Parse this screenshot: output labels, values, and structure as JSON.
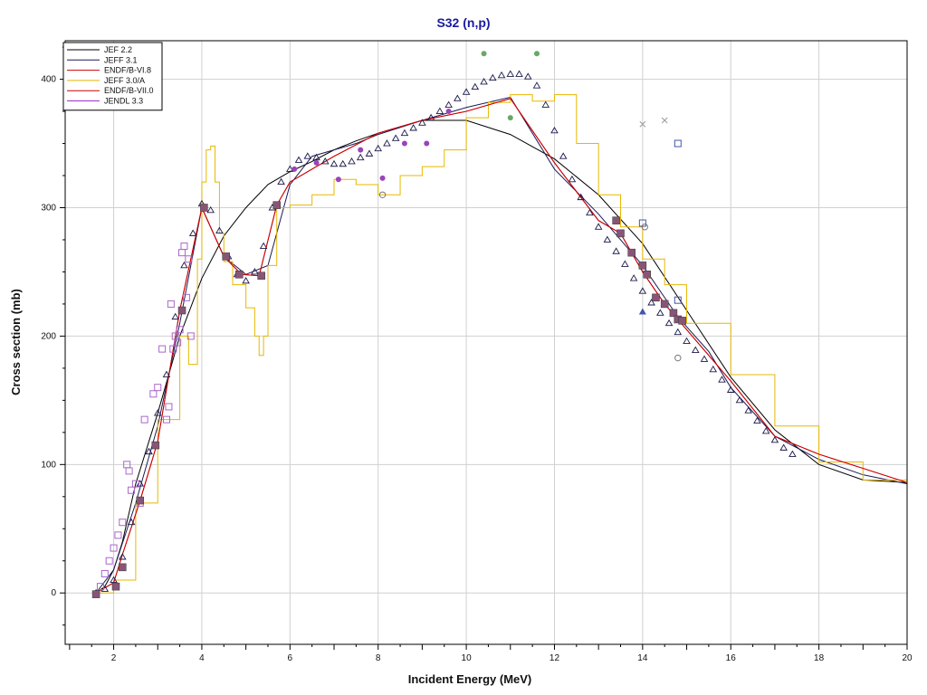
{
  "chart_data": {
    "type": "line",
    "title": "S32 (n,p)",
    "xlabel": "Incident Energy (MeV)",
    "ylabel": "Cross section (mb)",
    "xlim": [
      0.9,
      20
    ],
    "ylim": [
      -40,
      430
    ],
    "grid": true,
    "legend_position": "top-left",
    "x_ticks": [
      2,
      4,
      6,
      8,
      10,
      12,
      14,
      16,
      18,
      20
    ],
    "x_tick_labels": [
      "2",
      "4",
      "6",
      "8",
      "10",
      "12",
      "14",
      "16",
      "18",
      "20"
    ],
    "y_ticks": [
      0,
      100,
      200,
      300,
      400
    ],
    "y_tick_labels": [
      "0",
      "100",
      "200",
      "300",
      "400"
    ],
    "series": [
      {
        "name": "JEF 2.2",
        "color": "#000000",
        "style": "line",
        "x": [
          1.6,
          1.8,
          2.0,
          2.2,
          2.5,
          3.0,
          3.5,
          4.0,
          4.5,
          5.0,
          5.5,
          6.0,
          6.5,
          7.0,
          7.5,
          8.0,
          9.0,
          10.0,
          11.0,
          12.0,
          13.0,
          14.0,
          15.0,
          16.0,
          17.0,
          18.0,
          19.0,
          20.0
        ],
        "y": [
          0,
          5,
          18,
          40,
          85,
          140,
          200,
          245,
          278,
          300,
          318,
          328,
          336,
          345,
          352,
          358,
          368,
          368,
          357,
          338,
          310,
          272,
          220,
          168,
          127,
          100,
          88,
          86
        ]
      },
      {
        "name": "JEFF 3.1",
        "color": "#1a1a5a",
        "style": "line",
        "x": [
          1.6,
          2.0,
          2.5,
          3.0,
          3.5,
          4.0,
          4.5,
          5.0,
          5.5,
          6.0,
          6.5,
          7.0,
          7.5,
          8.0,
          9.0,
          10.0,
          11.0,
          12.0,
          13.0,
          14.0,
          14.8,
          15.5,
          16.0,
          17.0,
          18.0,
          19.0,
          20.0
        ],
        "y": [
          0,
          18,
          70,
          130,
          210,
          300,
          262,
          248,
          255,
          318,
          340,
          345,
          350,
          357,
          368,
          378,
          386,
          330,
          295,
          255,
          215,
          188,
          160,
          122,
          104,
          92,
          85
        ]
      },
      {
        "name": "ENDF/B-VI.8",
        "color": "#cc0000",
        "style": "line",
        "x": [
          1.6,
          2.0,
          2.2,
          2.6,
          3.0,
          3.5,
          4.0,
          4.5,
          4.9,
          5.3,
          5.7,
          6.0,
          7.0,
          8.0,
          9.0,
          10.0,
          11.0,
          12.0,
          13.0,
          13.5,
          14.0,
          14.5,
          15.0,
          16.0,
          17.0,
          18.0,
          19.0,
          20.0
        ],
        "y": [
          0,
          8,
          30,
          72,
          118,
          220,
          300,
          262,
          248,
          247,
          302,
          320,
          340,
          358,
          368,
          375,
          385,
          335,
          290,
          280,
          250,
          225,
          205,
          165,
          122,
          108,
          97,
          86
        ]
      },
      {
        "name": "JEFF 3.0/A",
        "color": "#e8b800",
        "style": "step",
        "x": [
          1.6,
          2.0,
          2.5,
          3.0,
          3.5,
          3.7,
          3.9,
          4.0,
          4.1,
          4.2,
          4.3,
          4.4,
          4.5,
          4.7,
          5.0,
          5.2,
          5.3,
          5.4,
          5.5,
          5.7,
          6.0,
          6.5,
          7.0,
          7.5,
          8.0,
          8.5,
          9.0,
          9.5,
          10.0,
          10.5,
          11.0,
          11.5,
          12.0,
          12.5,
          13.0,
          13.5,
          14.0,
          14.5,
          15.0,
          16.0,
          17.0,
          18.0,
          19.0,
          20.0
        ],
        "y": [
          0,
          10,
          70,
          135,
          200,
          178,
          260,
          320,
          345,
          348,
          320,
          280,
          258,
          240,
          222,
          200,
          185,
          200,
          255,
          300,
          302,
          310,
          322,
          318,
          310,
          325,
          332,
          345,
          370,
          382,
          388,
          383,
          388,
          350,
          310,
          285,
          260,
          240,
          210,
          170,
          130,
          102,
          88,
          77
        ]
      },
      {
        "name": "ENDF/B-VII.0",
        "color": "#cc0000",
        "style": "line",
        "x": [
          1.6,
          2.0,
          2.2,
          2.6,
          3.0,
          3.5,
          4.0,
          4.5,
          4.9,
          5.3,
          5.7,
          6.0,
          7.0,
          8.0,
          9.0,
          10.0,
          11.0,
          12.0,
          13.0,
          13.5,
          14.0,
          14.5,
          15.0,
          16.0,
          17.0,
          18.0,
          19.0,
          20.0
        ],
        "y": [
          0,
          8,
          30,
          72,
          118,
          220,
          300,
          262,
          248,
          247,
          302,
          320,
          340,
          358,
          368,
          375,
          385,
          335,
          290,
          280,
          250,
          225,
          205,
          165,
          122,
          108,
          97,
          86
        ]
      },
      {
        "name": "JENDL 3.3",
        "color": "#9933cc",
        "style": "triangles",
        "x": [
          1.6,
          1.8,
          2.0,
          2.2,
          2.4,
          2.6,
          2.8,
          3.0,
          3.2,
          3.4,
          3.6,
          3.8,
          4.0,
          4.2,
          4.4,
          4.6,
          4.8,
          5.0,
          5.2,
          5.4,
          5.6,
          5.8,
          6.0,
          6.2,
          6.4,
          6.6,
          6.8,
          7.0,
          7.2,
          7.4,
          7.6,
          7.8,
          8.0,
          8.2,
          8.4,
          8.6,
          8.8,
          9.0,
          9.2,
          9.4,
          9.6,
          9.8,
          10.0,
          10.2,
          10.4,
          10.6,
          10.8,
          11.0,
          11.2,
          11.4,
          11.6,
          11.8,
          12.0,
          12.2,
          12.4,
          12.6,
          12.8,
          13.0,
          13.2,
          13.4,
          13.6,
          13.8,
          14.0,
          14.2,
          14.4,
          14.6,
          14.8,
          15.0,
          15.2,
          15.4,
          15.6,
          15.8,
          16.0,
          16.2,
          16.4,
          16.6,
          16.8,
          17.0,
          17.2,
          17.4
        ],
        "y": [
          0,
          3,
          10,
          28,
          55,
          85,
          110,
          140,
          170,
          215,
          255,
          280,
          303,
          298,
          282,
          262,
          248,
          243,
          250,
          270,
          300,
          320,
          330,
          337,
          340,
          339,
          336,
          334,
          334,
          336,
          339,
          342,
          346,
          350,
          354,
          358,
          362,
          366,
          370,
          375,
          380,
          385,
          390,
          394,
          398,
          401,
          403,
          404,
          404,
          402,
          395,
          380,
          360,
          340,
          322,
          308,
          296,
          285,
          275,
          266,
          256,
          245,
          235,
          226,
          218,
          210,
          203,
          196,
          189,
          182,
          174,
          166,
          158,
          150,
          142,
          134,
          126,
          119,
          113,
          108
        ]
      }
    ],
    "experimental_points": [
      {
        "marker": "open-square",
        "color": "#aa66cc",
        "points": [
          [
            1.7,
            5
          ],
          [
            1.8,
            15
          ],
          [
            1.9,
            25
          ],
          [
            2.0,
            35
          ],
          [
            2.1,
            45
          ],
          [
            2.2,
            55
          ],
          [
            2.3,
            100
          ],
          [
            2.35,
            95
          ],
          [
            2.4,
            80
          ],
          [
            2.5,
            85
          ],
          [
            2.6,
            70
          ],
          [
            2.7,
            135
          ],
          [
            2.9,
            155
          ],
          [
            3.0,
            160
          ],
          [
            3.1,
            190
          ],
          [
            3.2,
            135
          ],
          [
            3.25,
            145
          ],
          [
            3.3,
            225
          ],
          [
            3.35,
            190
          ],
          [
            3.4,
            200
          ],
          [
            3.45,
            195
          ],
          [
            3.5,
            205
          ],
          [
            3.55,
            265
          ],
          [
            3.6,
            270
          ],
          [
            3.65,
            230
          ],
          [
            3.7,
            260
          ],
          [
            3.75,
            200
          ]
        ]
      },
      {
        "marker": "filled-square",
        "color": "#885577",
        "points": [
          [
            1.6,
            -1
          ],
          [
            2.05,
            5
          ],
          [
            2.2,
            20
          ],
          [
            2.6,
            72
          ],
          [
            2.95,
            115
          ],
          [
            3.55,
            220
          ],
          [
            4.05,
            300
          ],
          [
            4.55,
            262
          ],
          [
            4.85,
            248
          ],
          [
            5.35,
            247
          ],
          [
            5.7,
            302
          ],
          [
            13.4,
            290
          ],
          [
            13.5,
            280
          ],
          [
            13.75,
            265
          ],
          [
            14.0,
            255
          ],
          [
            14.1,
            248
          ],
          [
            14.3,
            230
          ],
          [
            14.5,
            225
          ],
          [
            14.7,
            218
          ],
          [
            14.8,
            213
          ],
          [
            14.9,
            212
          ]
        ]
      },
      {
        "marker": "filled-circle",
        "color": "#9944bb",
        "points": [
          [
            6.1,
            330
          ],
          [
            6.6,
            335
          ],
          [
            7.1,
            322
          ],
          [
            7.6,
            345
          ],
          [
            8.1,
            323
          ],
          [
            8.6,
            350
          ],
          [
            9.1,
            350
          ],
          [
            9.6,
            375
          ]
        ]
      },
      {
        "marker": "filled-circle",
        "color": "#66aa66",
        "points": [
          [
            10.4,
            420
          ],
          [
            11.0,
            370
          ],
          [
            11.6,
            420
          ]
        ]
      },
      {
        "marker": "open-circle",
        "color": "#777777",
        "points": [
          [
            8.1,
            310
          ],
          [
            14.05,
            285
          ],
          [
            14.8,
            183
          ]
        ]
      },
      {
        "marker": "open-square",
        "color": "#4455aa",
        "points": [
          [
            14.0,
            288
          ],
          [
            14.8,
            350
          ],
          [
            14.8,
            228
          ]
        ]
      },
      {
        "marker": "filled-triangle",
        "color": "#4455aa",
        "points": [
          [
            14.0,
            219
          ]
        ]
      },
      {
        "marker": "cross",
        "color": "#999999",
        "points": [
          [
            14.0,
            365
          ],
          [
            14.5,
            368
          ]
        ]
      }
    ]
  }
}
